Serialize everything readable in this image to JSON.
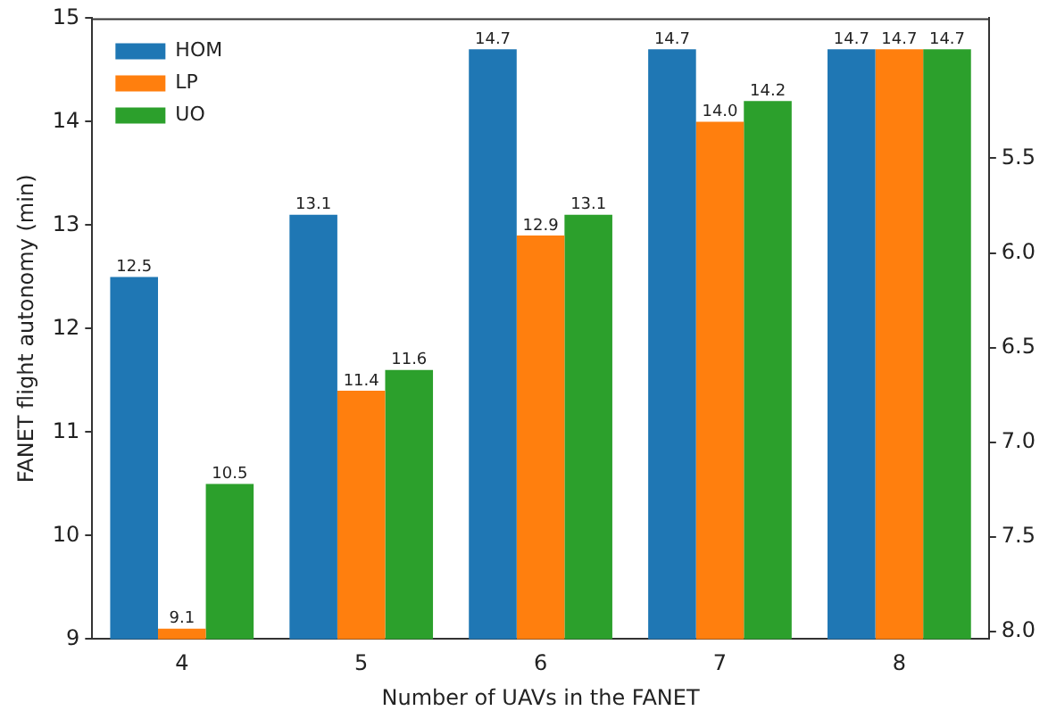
{
  "chart_data": {
    "type": "bar",
    "xlabel": "Number of UAVs in the FANET",
    "ylabel": "FANET flight autonomy (min)",
    "categories": [
      "4",
      "5",
      "6",
      "7",
      "8"
    ],
    "series": [
      {
        "name": "HOM",
        "color": "#1f77b4",
        "values": [
          12.5,
          13.1,
          14.7,
          14.7,
          14.7
        ],
        "value_labels": [
          "12.5",
          "13.1",
          "14.7",
          "14.7",
          "14.7"
        ]
      },
      {
        "name": "LP",
        "color": "#ff7f0e",
        "values": [
          9.1,
          11.4,
          12.9,
          14.0,
          14.7
        ],
        "value_labels": [
          "9.1",
          "11.4",
          "12.9",
          "14.0",
          "14.7"
        ]
      },
      {
        "name": "UO",
        "color": "#2ca02c",
        "values": [
          10.5,
          11.6,
          13.1,
          14.2,
          14.7
        ],
        "value_labels": [
          "10.5",
          "11.6",
          "13.1",
          "14.2",
          "14.7"
        ]
      }
    ],
    "ylim": [
      9,
      15
    ],
    "yticks": [
      9,
      10,
      11,
      12,
      13,
      14,
      15
    ],
    "y2lim": [
      8.04,
      4.76
    ],
    "y2ticks": [
      {
        "value": 5.5,
        "label": "5.5"
      },
      {
        "value": 6.0,
        "label": "6.0"
      },
      {
        "value": 6.5,
        "label": "6.5"
      },
      {
        "value": 7.0,
        "label": "7.0"
      },
      {
        "value": 7.5,
        "label": "7.5"
      },
      {
        "value": 8.0,
        "label": "8.0"
      }
    ],
    "legend": "top left",
    "grid": false
  }
}
